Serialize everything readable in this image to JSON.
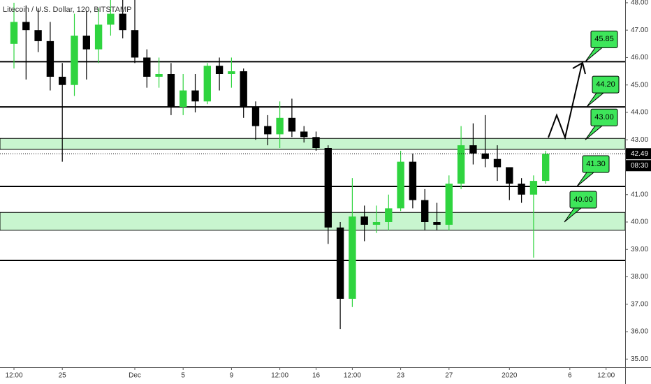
{
  "chart_data": {
    "type": "candlestick",
    "title": "Litecoin / U.S. Dollar, 120, BITSTAMP",
    "categories": [
      "12:00",
      null,
      null,
      null,
      "25",
      null,
      null,
      null,
      null,
      null,
      "Dec",
      null,
      null,
      null,
      "5",
      null,
      null,
      null,
      "9",
      null,
      null,
      null,
      "12:00",
      null,
      null,
      "16",
      null,
      null,
      "12:00",
      null,
      null,
      null,
      "23",
      null,
      null,
      null,
      "27",
      null,
      null,
      null,
      null,
      "2020",
      null,
      null,
      null,
      null,
      "6",
      null,
      null,
      "12:00"
    ],
    "open": [
      46.5,
      47.3,
      47.0,
      46.6,
      45.3,
      45.0,
      46.8,
      46.3,
      47.2,
      47.6,
      47.0,
      46.0,
      45.3,
      45.4,
      44.2,
      44.8,
      44.4,
      45.7,
      45.4,
      45.5,
      44.2,
      43.5,
      43.2,
      43.8,
      43.3,
      43.1,
      42.7,
      39.8,
      37.2,
      40.2,
      39.9,
      40.0,
      40.5,
      42.2,
      40.8,
      40.0,
      39.9,
      41.4,
      42.8,
      42.5,
      42.3,
      42.0,
      41.4,
      41.0,
      41.5,
      null,
      null,
      null,
      null,
      null
    ],
    "high": [
      48.0,
      47.9,
      47.8,
      47.3,
      45.8,
      47.6,
      47.7,
      47.8,
      48.1,
      48.1,
      48.1,
      46.3,
      46.0,
      45.8,
      45.4,
      45.4,
      45.8,
      46.0,
      46.0,
      45.6,
      44.4,
      43.9,
      44.4,
      44.5,
      43.5,
      43.3,
      42.8,
      40.0,
      41.6,
      40.6,
      40.6,
      41.0,
      42.6,
      42.5,
      41.2,
      40.7,
      41.7,
      43.5,
      43.6,
      43.9,
      42.8,
      42.0,
      41.6,
      41.7,
      42.6,
      null,
      null,
      null,
      null,
      null
    ],
    "low": [
      45.6,
      45.2,
      46.2,
      44.8,
      42.2,
      44.6,
      45.2,
      45.8,
      46.8,
      46.7,
      45.8,
      44.9,
      44.9,
      43.9,
      43.9,
      44.0,
      44.3,
      44.8,
      44.9,
      43.8,
      43.0,
      42.8,
      42.7,
      43.1,
      42.9,
      42.6,
      39.2,
      36.1,
      36.9,
      39.3,
      39.6,
      39.7,
      40.4,
      40.5,
      39.7,
      39.7,
      39.7,
      41.2,
      42.1,
      42.0,
      41.5,
      40.8,
      40.7,
      38.7,
      41.4,
      null,
      null,
      null,
      null,
      null
    ],
    "close": [
      47.3,
      47.0,
      46.6,
      45.3,
      45.0,
      46.8,
      46.3,
      47.2,
      47.6,
      47.0,
      46.0,
      45.3,
      45.4,
      44.2,
      44.8,
      44.4,
      45.7,
      45.4,
      45.5,
      44.2,
      43.5,
      43.2,
      43.8,
      43.3,
      43.1,
      42.7,
      39.8,
      37.2,
      40.2,
      39.9,
      40.0,
      40.5,
      42.2,
      40.8,
      40.0,
      39.9,
      41.4,
      42.8,
      42.5,
      42.3,
      42.0,
      41.4,
      41.0,
      41.5,
      42.49,
      null,
      null,
      null,
      null,
      null
    ],
    "up_color": "#2fd43f",
    "down_color": "#000000",
    "ylim": [
      34.6,
      48.1
    ],
    "yticks": [
      {
        "value": 35,
        "label": "35.00"
      },
      {
        "value": 36,
        "label": "36.00"
      },
      {
        "value": 37,
        "label": "37.00"
      },
      {
        "value": 38,
        "label": "38.00"
      },
      {
        "value": 39,
        "label": "39.00"
      },
      {
        "value": 40,
        "label": "40.00"
      },
      {
        "value": 41,
        "label": "41.00"
      },
      {
        "value": 42,
        "label": "42.00"
      },
      {
        "value": 43,
        "label": "43.00"
      },
      {
        "value": 44,
        "label": "44.00"
      },
      {
        "value": 45,
        "label": "45.00"
      },
      {
        "value": 46,
        "label": "46.00"
      },
      {
        "value": 47,
        "label": "47.00"
      },
      {
        "value": 48,
        "label": "48.00"
      }
    ],
    "levels": [
      45.85,
      44.2,
      41.3,
      38.6
    ],
    "zones": [
      [
        42.65,
        43.05
      ],
      [
        39.7,
        40.35
      ]
    ],
    "zone_color": "#c8f5cf",
    "callouts": [
      {
        "value": 45.85,
        "label": "45.85"
      },
      {
        "value": 44.2,
        "label": "44.20"
      },
      {
        "value": 43.0,
        "label": "43.00"
      },
      {
        "value": 41.3,
        "label": "41.30"
      },
      {
        "value": 40.0,
        "label": "40.00"
      }
    ],
    "callout_color": "#3ee65a",
    "last_price": {
      "value": 42.49,
      "label": "42.49"
    },
    "countdown": "08:30"
  }
}
